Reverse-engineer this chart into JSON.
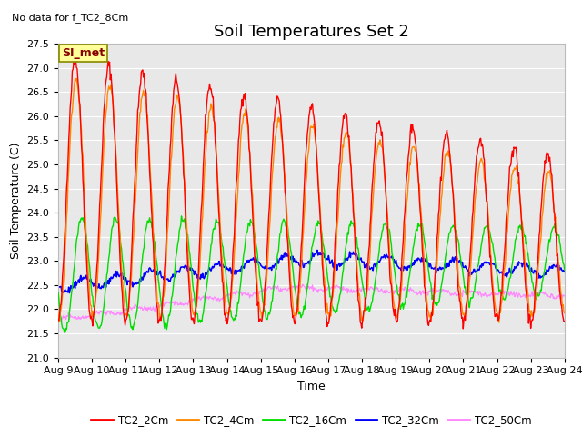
{
  "title": "Soil Temperatures Set 2",
  "subtitle": "No data for f_TC2_8Cm",
  "xlabel": "Time",
  "ylabel": "Soil Temperature (C)",
  "ylim": [
    21.0,
    27.5
  ],
  "x_tick_labels": [
    "Aug 9",
    "Aug 10",
    "Aug 11",
    "Aug 12",
    "Aug 13",
    "Aug 14",
    "Aug 15",
    "Aug 16",
    "Aug 17",
    "Aug 18",
    "Aug 19",
    "Aug 20",
    "Aug 21",
    "Aug 22",
    "Aug 23",
    "Aug 24"
  ],
  "legend_labels": [
    "TC2_2Cm",
    "TC2_4Cm",
    "TC2_16Cm",
    "TC2_32Cm",
    "TC2_50Cm"
  ],
  "colors": {
    "TC2_2Cm": "#ff0000",
    "TC2_4Cm": "#ff8800",
    "TC2_16Cm": "#00dd00",
    "TC2_32Cm": "#0000ff",
    "TC2_50Cm": "#ff88ff"
  },
  "bg_color": "#e8e8e8",
  "fig_bg": "#ffffff",
  "SI_met_box_color": "#ffff99",
  "SI_met_text_color": "#880000",
  "title_fontsize": 13,
  "axis_label_fontsize": 9,
  "tick_fontsize": 8
}
